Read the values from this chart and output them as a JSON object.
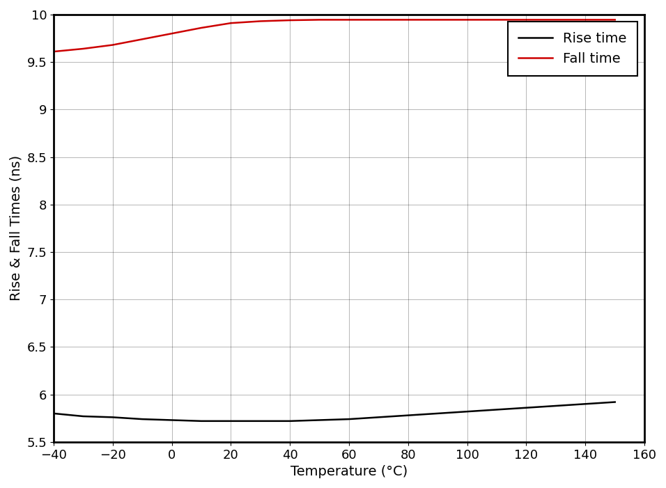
{
  "xlabel": "Temperature (°C)",
  "ylabel": "Rise & Fall Times (ns)",
  "xlim": [
    -40,
    160
  ],
  "ylim": [
    5.5,
    10
  ],
  "xticks": [
    -40,
    -20,
    0,
    20,
    40,
    60,
    80,
    100,
    120,
    140,
    160
  ],
  "yticks": [
    5.5,
    6.0,
    6.5,
    7.0,
    7.5,
    8.0,
    8.5,
    9.0,
    9.5,
    10.0
  ],
  "rise_time_x": [
    -40,
    -30,
    -20,
    -10,
    0,
    10,
    20,
    30,
    40,
    50,
    60,
    70,
    80,
    90,
    100,
    110,
    120,
    130,
    140,
    150
  ],
  "rise_time_y": [
    5.8,
    5.77,
    5.76,
    5.74,
    5.73,
    5.72,
    5.72,
    5.72,
    5.72,
    5.73,
    5.74,
    5.76,
    5.78,
    5.8,
    5.82,
    5.84,
    5.86,
    5.88,
    5.9,
    5.92
  ],
  "fall_time_x": [
    -40,
    -30,
    -20,
    -10,
    0,
    10,
    20,
    30,
    40,
    50,
    60,
    70,
    80,
    90,
    100,
    110,
    120,
    130,
    140,
    150
  ],
  "fall_time_y": [
    9.61,
    9.64,
    9.68,
    9.74,
    9.8,
    9.86,
    9.91,
    9.93,
    9.94,
    9.945,
    9.945,
    9.945,
    9.945,
    9.945,
    9.945,
    9.945,
    9.945,
    9.945,
    9.945,
    9.945
  ],
  "rise_color": "#000000",
  "fall_color": "#cc0000",
  "legend_labels": [
    "Rise time",
    "Fall time"
  ],
  "line_width": 1.8,
  "grid_color": "#000000",
  "background_color": "#ffffff",
  "label_fontsize": 14,
  "tick_fontsize": 13,
  "legend_fontsize": 14
}
